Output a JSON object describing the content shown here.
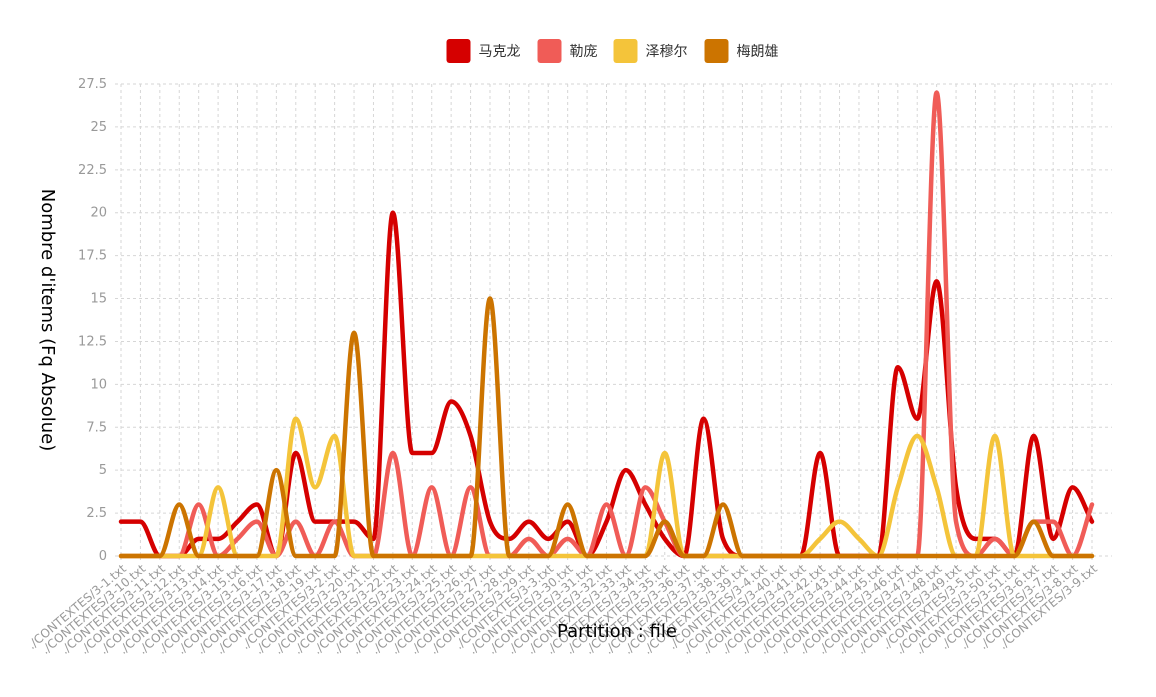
{
  "chart_data": {
    "type": "line",
    "xlabel": "Partition : file",
    "ylabel": "Nombre d'items (Fq Absolue)",
    "ylim": [
      0,
      27.5
    ],
    "yticks": [
      "0",
      "2.5",
      "5",
      "7.5",
      "10",
      "12.5",
      "15",
      "17.5",
      "20",
      "22.5",
      "25",
      "27.5"
    ],
    "grid": true,
    "legend_position": "top-center",
    "categories": [
      "./CONTEXTES/3-1.txt",
      "./CONTEXTES/3-10.txt",
      "./CONTEXTES/3-11.txt",
      "./CONTEXTES/3-12.txt",
      "./CONTEXTES/3-13.txt",
      "./CONTEXTES/3-14.txt",
      "./CONTEXTES/3-15.txt",
      "./CONTEXTES/3-16.txt",
      "./CONTEXTES/3-17.txt",
      "./CONTEXTES/3-18.txt",
      "./CONTEXTES/3-19.txt",
      "./CONTEXTES/3-2.txt",
      "./CONTEXTES/3-20.txt",
      "./CONTEXTES/3-21.txt",
      "./CONTEXTES/3-22.txt",
      "./CONTEXTES/3-23.txt",
      "./CONTEXTES/3-24.txt",
      "./CONTEXTES/3-25.txt",
      "./CONTEXTES/3-26.txt",
      "./CONTEXTES/3-27.txt",
      "./CONTEXTES/3-28.txt",
      "./CONTEXTES/3-29.txt",
      "./CONTEXTES/3-3.txt",
      "./CONTEXTES/3-30.txt",
      "./CONTEXTES/3-31.txt",
      "./CONTEXTES/3-32.txt",
      "./CONTEXTES/3-33.txt",
      "./CONTEXTES/3-34.txt",
      "./CONTEXTES/3-35.txt",
      "./CONTEXTES/3-36.txt",
      "./CONTEXTES/3-37.txt",
      "./CONTEXTES/3-38.txt",
      "./CONTEXTES/3-39.txt",
      "./CONTEXTES/3-4.txt",
      "./CONTEXTES/3-40.txt",
      "./CONTEXTES/3-41.txt",
      "./CONTEXTES/3-42.txt",
      "./CONTEXTES/3-43.txt",
      "./CONTEXTES/3-44.txt",
      "./CONTEXTES/3-45.txt",
      "./CONTEXTES/3-46.txt",
      "./CONTEXTES/3-47.txt",
      "./CONTEXTES/3-48.txt",
      "./CONTEXTES/3-49.txt",
      "./CONTEXTES/3-5.txt",
      "./CONTEXTES/3-50.txt",
      "./CONTEXTES/3-51.txt",
      "./CONTEXTES/3-6.txt",
      "./CONTEXTES/3-7.txt",
      "./CONTEXTES/3-8.txt",
      "./CONTEXTES/3-9.txt"
    ],
    "series": [
      {
        "name": "马克龙",
        "color": "#d50000",
        "values": [
          2,
          2,
          0,
          0,
          1,
          1,
          2,
          3,
          0,
          6,
          2,
          2,
          2,
          1,
          20,
          6,
          6,
          9,
          7,
          2,
          1,
          2,
          1,
          2,
          0,
          2,
          5,
          3,
          1,
          0,
          8,
          1,
          0,
          0,
          0,
          0,
          6,
          0,
          0,
          0,
          11,
          8,
          16,
          4,
          1,
          1,
          0,
          7,
          1,
          4,
          2
        ]
      },
      {
        "name": "勒庞",
        "color": "#f05c57",
        "values": [
          0,
          0,
          0,
          0,
          3,
          0,
          1,
          2,
          0,
          2,
          0,
          2,
          0,
          0,
          6,
          0,
          4,
          0,
          4,
          0,
          0,
          1,
          0,
          1,
          0,
          3,
          0,
          4,
          2,
          0,
          0,
          0,
          0,
          0,
          0,
          0,
          0,
          0,
          0,
          0,
          0,
          0,
          27,
          2,
          0,
          1,
          0,
          2,
          2,
          0,
          3
        ]
      },
      {
        "name": "泽穆尔",
        "color": "#f4c43a",
        "values": [
          0,
          0,
          0,
          0,
          0,
          4,
          0,
          0,
          0,
          8,
          4,
          7,
          0,
          0,
          0,
          0,
          0,
          0,
          0,
          0,
          0,
          0,
          0,
          0,
          0,
          0,
          0,
          0,
          6,
          0,
          0,
          0,
          0,
          0,
          0,
          0,
          1,
          2,
          1,
          0,
          4,
          7,
          4,
          0,
          0,
          7,
          0,
          0,
          0,
          0,
          0
        ]
      },
      {
        "name": "梅朗雄",
        "color": "#cc7400",
        "values": [
          0,
          0,
          0,
          3,
          0,
          0,
          0,
          0,
          5,
          0,
          0,
          0,
          13,
          0,
          0,
          0,
          0,
          0,
          0,
          15,
          0,
          0,
          0,
          3,
          0,
          0,
          0,
          0,
          2,
          0,
          0,
          3,
          0,
          0,
          0,
          0,
          0,
          0,
          0,
          0,
          0,
          0,
          0,
          0,
          0,
          0,
          0,
          2,
          0,
          0,
          0
        ]
      }
    ]
  }
}
